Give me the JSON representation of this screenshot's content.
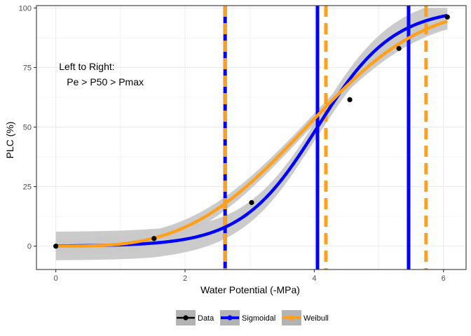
{
  "chart_data": {
    "type": "line",
    "xlabel": "Water Potential (-MPa)",
    "ylabel": "PLC (%)",
    "xlim": [
      -0.3,
      6.35
    ],
    "ylim": [
      -9.8,
      101
    ],
    "x_ticks": [
      0,
      2,
      4,
      6
    ],
    "x_tick_labels": [
      "0",
      "2",
      "4",
      "6"
    ],
    "y_ticks": [
      0,
      25,
      50,
      75,
      100
    ],
    "y_tick_labels": [
      "0",
      "25",
      "50",
      "75",
      "100"
    ],
    "grid": true,
    "legend_position": "bottom",
    "annotation": {
      "line1": "Left to Right:",
      "line2": "Pe > P50 > Pmax",
      "x": 0.05,
      "y": 74
    },
    "data_points": {
      "name": "Data",
      "x": [
        0.0,
        1.52,
        3.03,
        4.55,
        5.31,
        6.06
      ],
      "y": [
        0.0,
        3.2,
        18.3,
        61.5,
        83.0,
        96.2
      ]
    },
    "sigmoidal": {
      "name": "Sigmoidal",
      "b": 1.71,
      "x50": 4.05,
      "pe": 2.62,
      "pmax": 5.46
    },
    "weibull": {
      "name": "Weibull",
      "b": 4.35,
      "c": 3.2,
      "pe": 2.62,
      "p50": 4.18,
      "pmax": 5.73
    },
    "legend": [
      "Data",
      "Sigmoidal",
      "Weibull"
    ],
    "colors": {
      "data": "#000000",
      "sigmoidal": "#0000ff",
      "weibull": "#ffa01c",
      "ci_band": "#c8c8c8",
      "grid": "#ebebeb",
      "legend_key_bg": "#b3b3b3"
    }
  }
}
